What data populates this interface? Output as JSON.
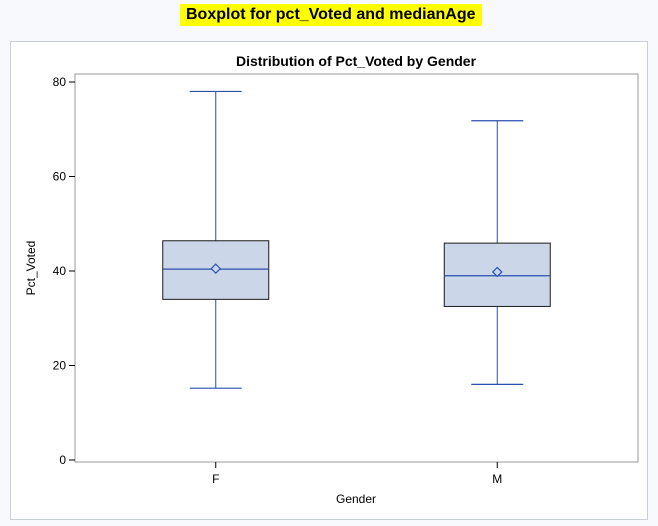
{
  "page": {
    "heading": "Boxplot for pct_Voted and medianAge"
  },
  "colors": {
    "highlight": "#ffff00",
    "box_fill": "#cbd6e8",
    "box_stroke": "#1a1a1a",
    "whisker": "#2a4fb0",
    "plot_border": "#9a9a9a",
    "page_bg": "#f7f9fd"
  },
  "chart_data": {
    "type": "boxplot",
    "title": "Distribution of Pct_Voted by Gender",
    "xlabel": "Gender",
    "ylabel": "Pct_Voted",
    "ylim": [
      0,
      80
    ],
    "yticks": [
      0,
      20,
      40,
      60,
      80
    ],
    "grid": false,
    "legend": "none",
    "categories": [
      "F",
      "M"
    ],
    "boxes": [
      {
        "category": "F",
        "min": 15.2,
        "q1": 34.0,
        "median": 40.4,
        "mean": 40.5,
        "q3": 46.4,
        "max": 78.0
      },
      {
        "category": "M",
        "min": 16.0,
        "q1": 32.5,
        "median": 39.0,
        "mean": 39.8,
        "q3": 45.9,
        "max": 71.8
      }
    ]
  }
}
